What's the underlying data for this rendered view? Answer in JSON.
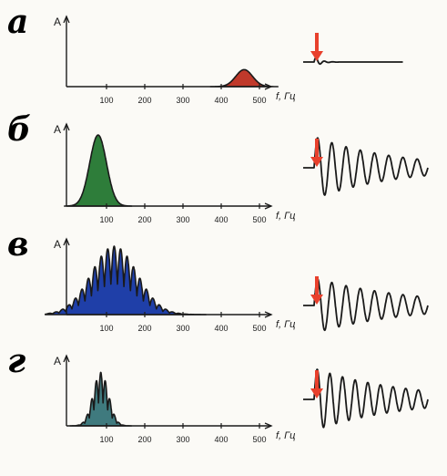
{
  "colors": {
    "letter": "#e0507e",
    "ink": "#1a1a1a",
    "arrow": "#e8402c",
    "fills": [
      "#c0392b",
      "#2e7d3a",
      "#1f3fa8",
      "#3f7a7e"
    ]
  },
  "panels": [
    {
      "id": "a",
      "letter": "а",
      "ylabel": "A",
      "xlabel": "f, Гц",
      "ticks": [
        "100",
        "200",
        "300",
        "400",
        "500"
      ],
      "spectrum": {
        "shape": "smooth",
        "center_hz": 460,
        "width_hz": 22,
        "amplitude": 0.27
      },
      "wave": {
        "cycles": 3,
        "amplitude": 0.17,
        "decay": 4.5,
        "width_fraction": 0.22
      }
    },
    {
      "id": "b",
      "letter": "б",
      "ylabel": "A",
      "xlabel": "f, Гц",
      "ticks": [
        "100",
        "200",
        "300",
        "400",
        "500"
      ],
      "spectrum": {
        "shape": "smooth",
        "center_hz": 78,
        "width_hz": 22,
        "amplitude": 0.95
      },
      "wave": {
        "cycles": 8,
        "amplitude": 0.9,
        "decay": 1.4,
        "width_fraction": 1.0
      }
    },
    {
      "id": "v",
      "letter": "в",
      "ylabel": "A",
      "xlabel": "f, Гц",
      "ticks": [
        "100",
        "200",
        "300",
        "400",
        "500"
      ],
      "spectrum": {
        "shape": "comb",
        "center_hz": 120,
        "width_hz": 60,
        "amplitude": 1.0,
        "lobe_hz": 17
      },
      "wave": {
        "cycles": 8,
        "amplitude": 0.95,
        "decay": 1.2,
        "width_fraction": 1.0
      }
    },
    {
      "id": "g",
      "letter": "г",
      "ylabel": "A",
      "xlabel": "f, Гц",
      "ticks": [
        "100",
        "200",
        "300",
        "400",
        "500"
      ],
      "spectrum": {
        "shape": "comb",
        "center_hz": 85,
        "width_hz": 20,
        "amplitude": 0.85,
        "lobe_hz": 12
      },
      "wave": {
        "cycles": 9,
        "amplitude": 0.95,
        "decay": 1.3,
        "width_fraction": 1.0
      }
    }
  ]
}
